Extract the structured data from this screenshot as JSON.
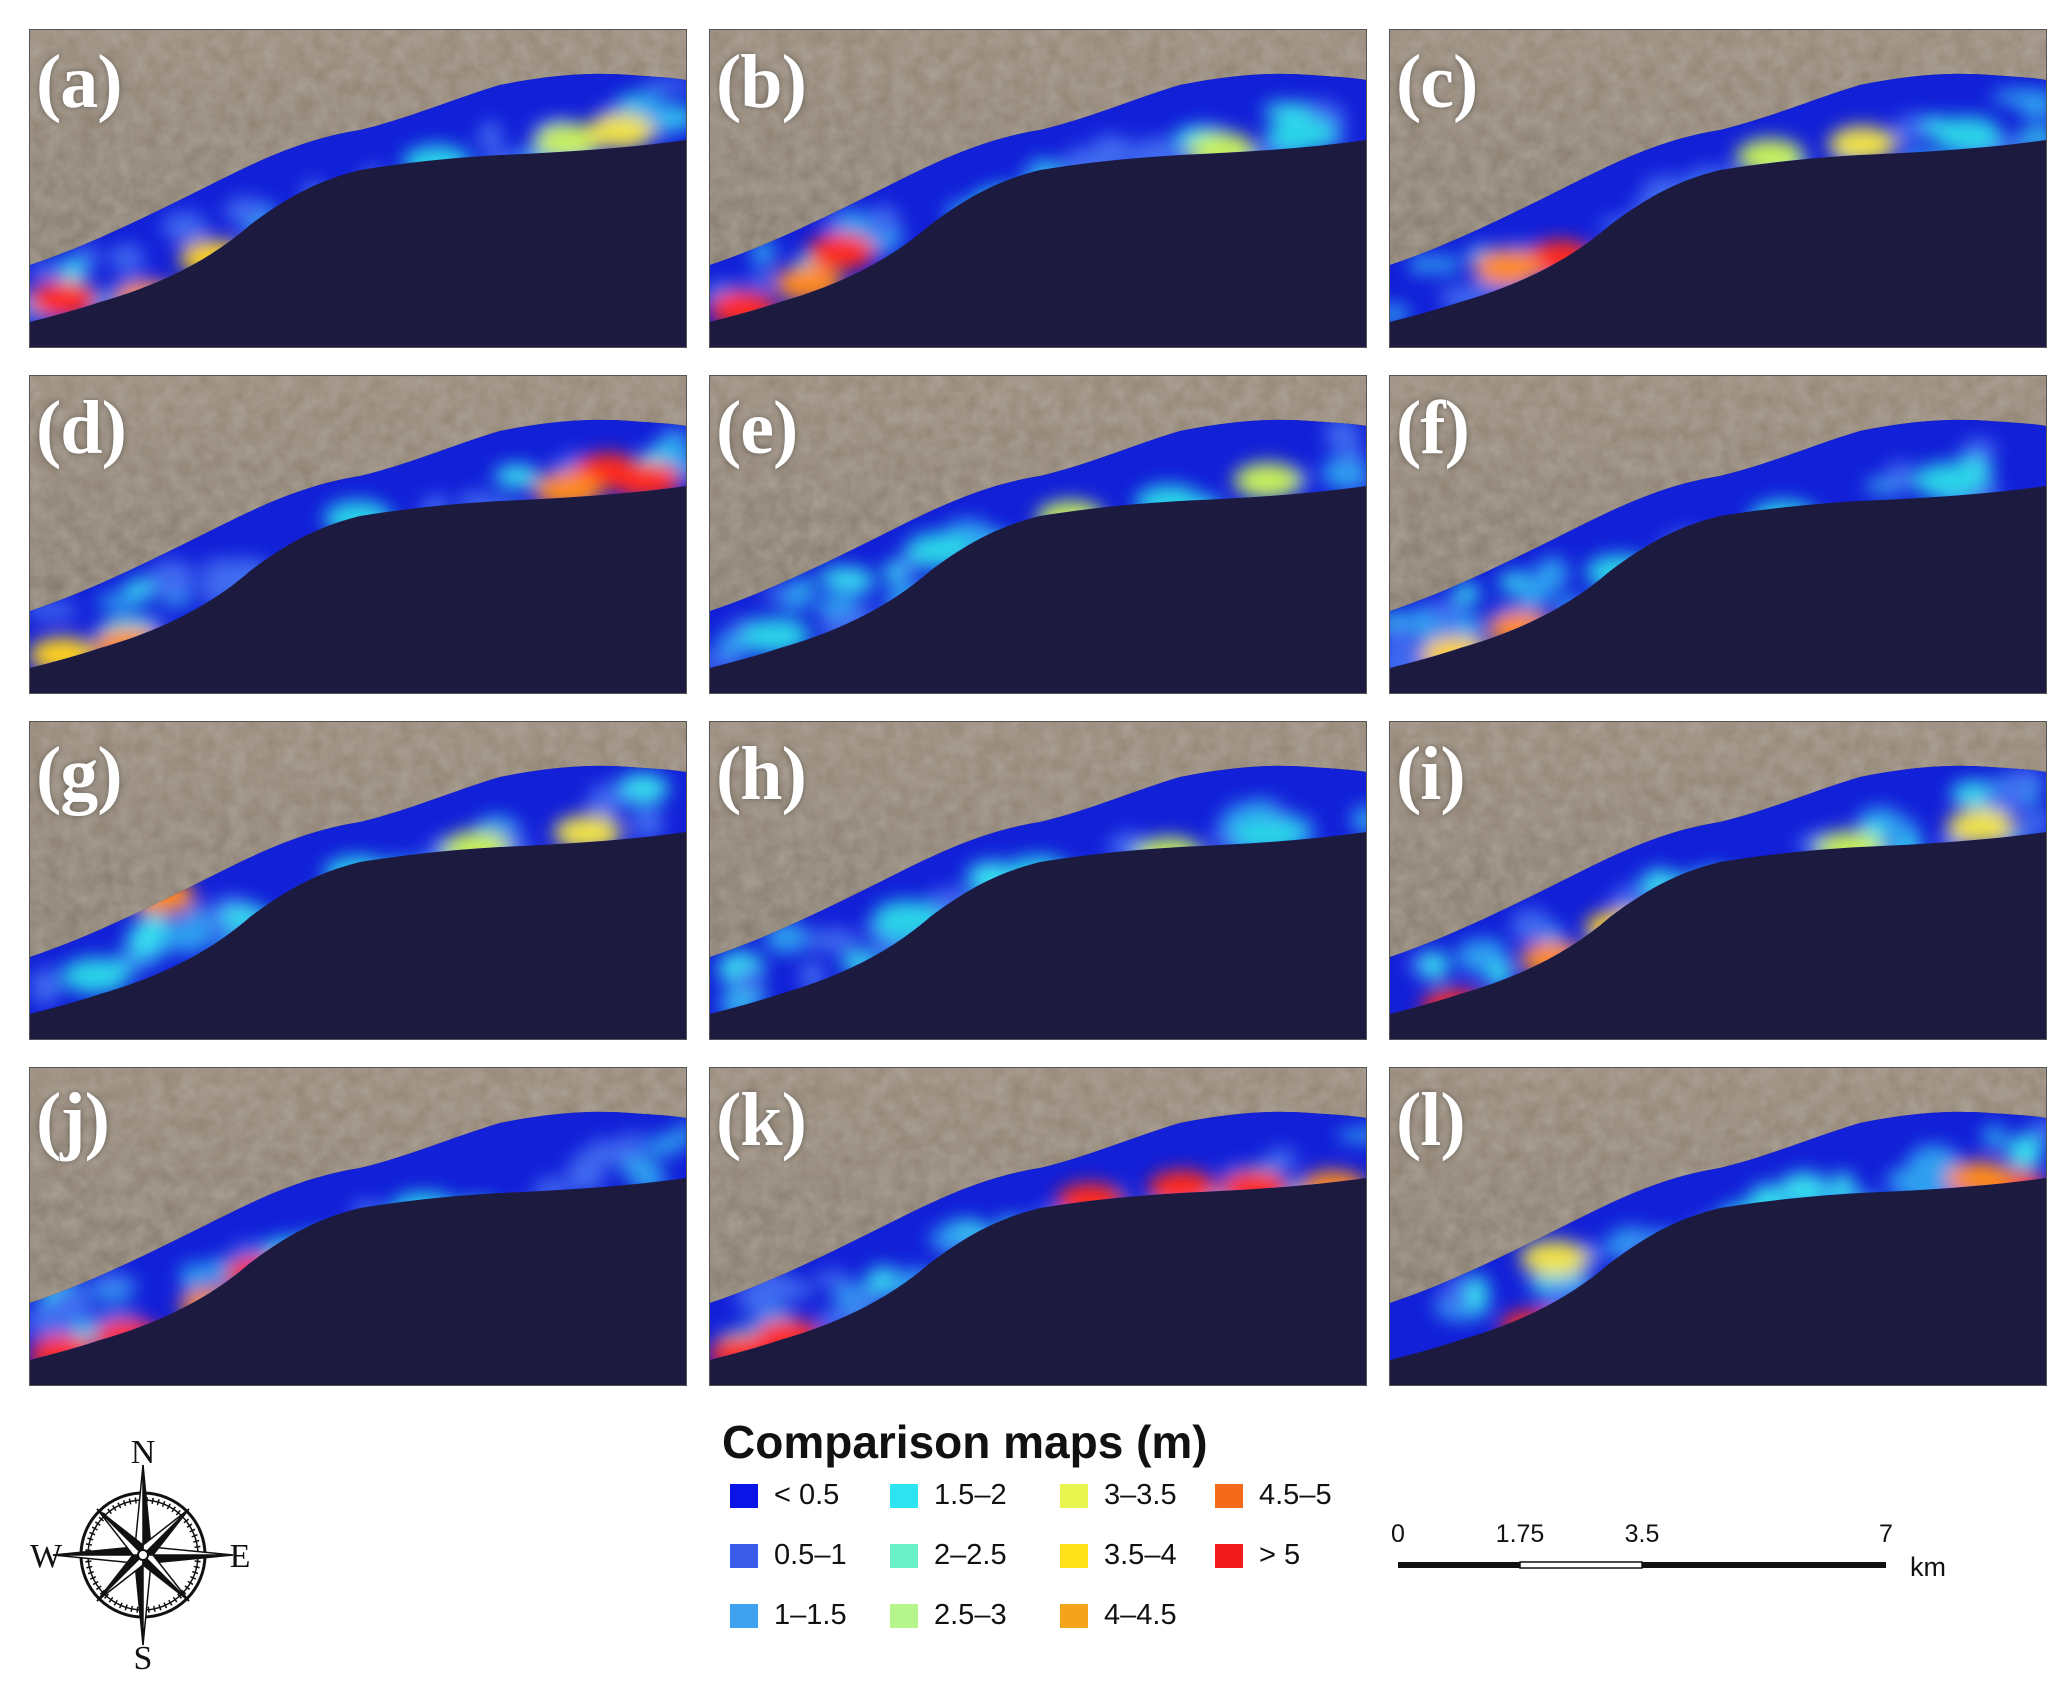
{
  "panels": [
    {
      "label": "(a)",
      "hot": [
        [
          0.05,
          0.85,
          "#ff2b1a"
        ],
        [
          0.18,
          0.85,
          "#ff8a1e"
        ],
        [
          0.28,
          0.72,
          "#ffd21f"
        ],
        [
          0.82,
          0.35,
          "#c8f05a"
        ],
        [
          0.9,
          0.32,
          "#f0e24a"
        ],
        [
          0.62,
          0.42,
          "#2ad4e8"
        ]
      ]
    },
    {
      "label": "(b)",
      "hot": [
        [
          0.05,
          0.88,
          "#ff2b1a"
        ],
        [
          0.15,
          0.8,
          "#ff8a1e"
        ],
        [
          0.2,
          0.7,
          "#ff2b1a"
        ],
        [
          0.45,
          0.55,
          "#2ad4e8"
        ],
        [
          0.78,
          0.38,
          "#c8f05a"
        ],
        [
          0.9,
          0.33,
          "#2ad4e8"
        ]
      ]
    },
    {
      "label": "(c)",
      "hot": [
        [
          0.26,
          0.72,
          "#ff2b1a"
        ],
        [
          0.3,
          0.8,
          "#ff2b1a"
        ],
        [
          0.18,
          0.75,
          "#ff8a1e"
        ],
        [
          0.58,
          0.4,
          "#c8f05a"
        ],
        [
          0.72,
          0.36,
          "#f0e24a"
        ],
        [
          0.88,
          0.33,
          "#2ad4e8"
        ]
      ]
    },
    {
      "label": "(d)",
      "hot": [
        [
          0.88,
          0.3,
          "#ff2b1a"
        ],
        [
          0.94,
          0.33,
          "#ff2b1a"
        ],
        [
          0.82,
          0.36,
          "#ff8a1e"
        ],
        [
          0.15,
          0.85,
          "#ff8a1e"
        ],
        [
          0.05,
          0.88,
          "#ffd21f"
        ],
        [
          0.5,
          0.45,
          "#2ad4e8"
        ]
      ]
    },
    {
      "label": "(e)",
      "hot": [
        [
          0.55,
          0.45,
          "#c8f05a"
        ],
        [
          0.7,
          0.4,
          "#2ad4e8"
        ],
        [
          0.85,
          0.33,
          "#c8f05a"
        ],
        [
          0.35,
          0.55,
          "#2ad4e8"
        ],
        [
          0.1,
          0.82,
          "#2ad4e8"
        ]
      ]
    },
    {
      "label": "(f)",
      "hot": [
        [
          0.1,
          0.88,
          "#ffd21f"
        ],
        [
          0.2,
          0.8,
          "#ff8a1e"
        ],
        [
          0.35,
          0.62,
          "#2ad4e8"
        ],
        [
          0.6,
          0.45,
          "#2ad4e8"
        ],
        [
          0.85,
          0.33,
          "#2ad4e8"
        ]
      ]
    },
    {
      "label": "(g)",
      "hot": [
        [
          0.2,
          0.55,
          "#ff8a1e"
        ],
        [
          0.68,
          0.4,
          "#c8f05a"
        ],
        [
          0.85,
          0.35,
          "#f0e24a"
        ],
        [
          0.5,
          0.48,
          "#2ad4e8"
        ],
        [
          0.1,
          0.8,
          "#2ad4e8"
        ]
      ]
    },
    {
      "label": "(h)",
      "hot": [
        [
          0.5,
          0.48,
          "#2ad4e8"
        ],
        [
          0.7,
          0.42,
          "#c8f05a"
        ],
        [
          0.85,
          0.36,
          "#2ad4e8"
        ],
        [
          0.3,
          0.62,
          "#2ad4e8"
        ]
      ]
    },
    {
      "label": "(i)",
      "hot": [
        [
          0.1,
          0.9,
          "#ff2b1a"
        ],
        [
          0.25,
          0.75,
          "#ff8a1e"
        ],
        [
          0.35,
          0.65,
          "#ffd21f"
        ],
        [
          0.7,
          0.4,
          "#c8f05a"
        ],
        [
          0.9,
          0.33,
          "#f0e24a"
        ]
      ]
    },
    {
      "label": "(j)",
      "hot": [
        [
          0.05,
          0.9,
          "#ff2b1a"
        ],
        [
          0.15,
          0.85,
          "#ff2b1a"
        ],
        [
          0.28,
          0.75,
          "#ff8a1e"
        ],
        [
          0.35,
          0.65,
          "#ff2b1a"
        ],
        [
          0.6,
          0.45,
          "#2ad4e8"
        ]
      ]
    },
    {
      "label": "(k)",
      "hot": [
        [
          0.05,
          0.9,
          "#ff2b1a"
        ],
        [
          0.12,
          0.85,
          "#ff2b1a"
        ],
        [
          0.58,
          0.42,
          "#ff2b1a"
        ],
        [
          0.72,
          0.38,
          "#ff2b1a"
        ],
        [
          0.83,
          0.38,
          "#ff2b1a"
        ],
        [
          0.95,
          0.38,
          "#ff8a1e"
        ]
      ]
    },
    {
      "label": "(l)",
      "hot": [
        [
          0.22,
          0.82,
          "#ff2b1a"
        ],
        [
          0.95,
          0.38,
          "#ff2b1a"
        ],
        [
          0.9,
          0.35,
          "#ff8a1e"
        ],
        [
          0.25,
          0.6,
          "#f0e24a"
        ],
        [
          0.55,
          0.48,
          "#2ad4e8"
        ]
      ]
    }
  ],
  "legend": {
    "title": "Comparison maps (m)",
    "items": [
      {
        "label": "< 0.5",
        "color": "#0a14e6"
      },
      {
        "label": "0.5–1",
        "color": "#3a5ce8"
      },
      {
        "label": "1–1.5",
        "color": "#3fa2f0"
      },
      {
        "label": "1.5–2",
        "color": "#2ee3f0"
      },
      {
        "label": "2–2.5",
        "color": "#6cf0c8"
      },
      {
        "label": "2.5–3",
        "color": "#b6f58c"
      },
      {
        "label": "3–3.5",
        "color": "#e7f54e"
      },
      {
        "label": "3.5–4",
        "color": "#ffe21a"
      },
      {
        "label": "4–4.5",
        "color": "#f4a41a"
      },
      {
        "label": "4.5–5",
        "color": "#f56a1a"
      },
      {
        "label": "> 5",
        "color": "#f21a1a"
      }
    ]
  },
  "scalebar": {
    "ticks": [
      "0",
      "1.75",
      "3.5",
      "7"
    ],
    "unit": "km"
  },
  "compass": {
    "n": "N",
    "e": "E",
    "s": "S",
    "w": "W"
  },
  "colors": {
    "sea": "#1c1a3f",
    "land": "#8a7d6f",
    "band_base": "#1220d8"
  }
}
